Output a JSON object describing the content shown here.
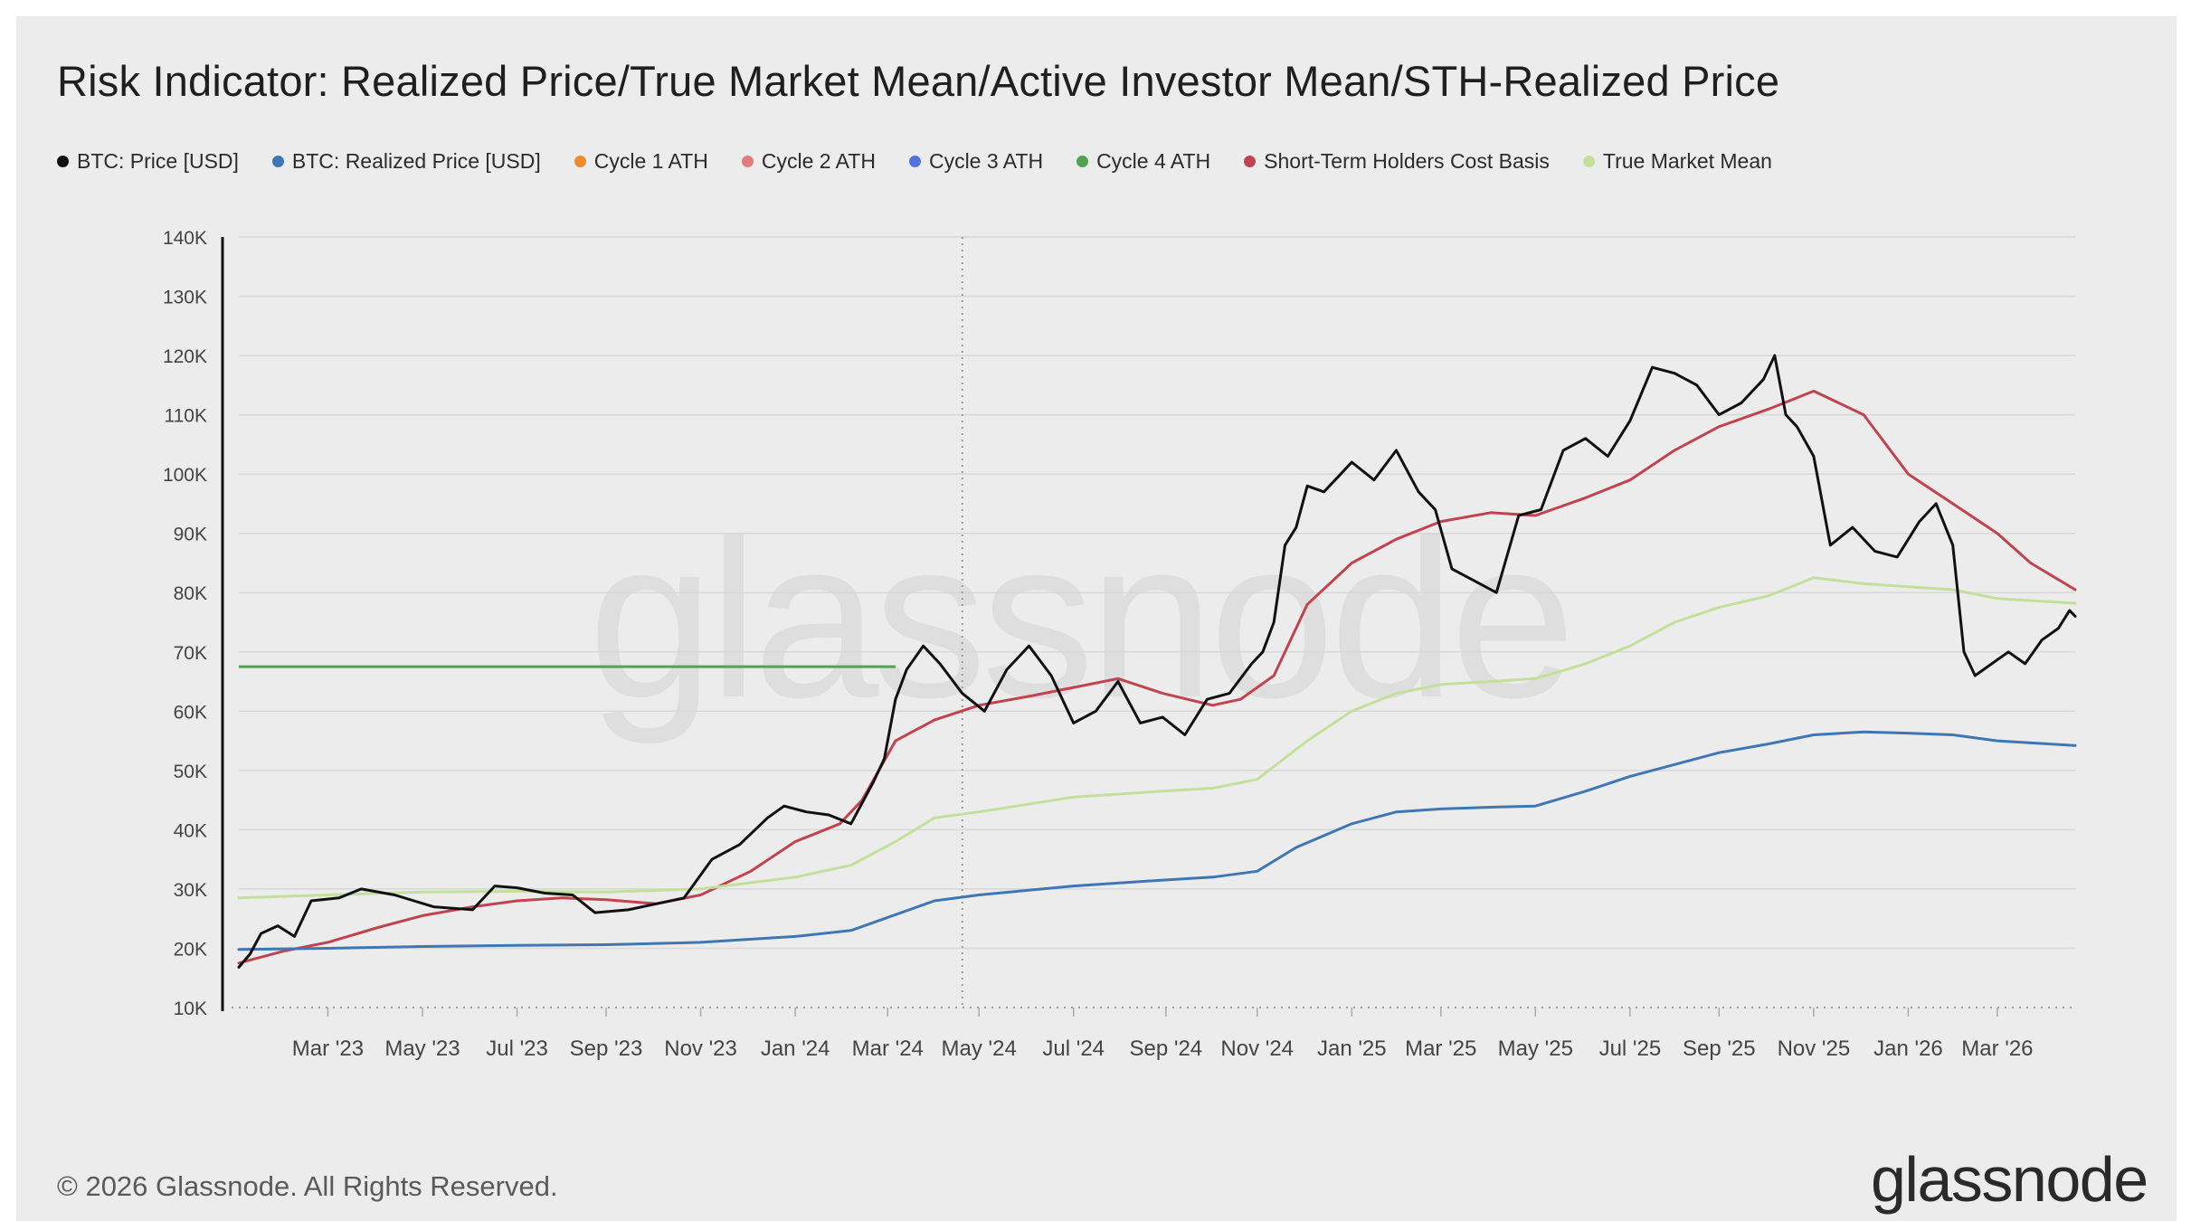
{
  "title": "Risk Indicator: Realized Price/True Market Mean/Active Investor Mean/STH-Realized Price",
  "legend": [
    {
      "label": "BTC: Price [USD]",
      "color": "#111111"
    },
    {
      "label": "BTC: Realized Price [USD]",
      "color": "#3f77b4"
    },
    {
      "label": "Cycle 1 ATH",
      "color": "#ef8b2c"
    },
    {
      "label": "Cycle 2 ATH",
      "color": "#e37d7d"
    },
    {
      "label": "Cycle 3 ATH",
      "color": "#4f74de"
    },
    {
      "label": "Cycle 4 ATH",
      "color": "#4fa352"
    },
    {
      "label": "Short-Term Holders Cost Basis",
      "color": "#c0434f"
    },
    {
      "label": "True Market Mean",
      "color": "#c3e09a"
    }
  ],
  "watermark": "glassnode",
  "footer": {
    "copyright": "© 2026 Glassnode. All Rights Reserved.",
    "logo": "glassnode"
  },
  "chart_data": {
    "type": "line",
    "title": "Risk Indicator: Realized Price/True Market Mean/Active Investor Mean/STH-Realized Price",
    "xlabel": "",
    "ylabel": "",
    "x_range": [
      2023.0,
      2026.3
    ],
    "ylim": [
      10000,
      140000
    ],
    "y_ticks": [
      10000,
      20000,
      30000,
      40000,
      50000,
      60000,
      70000,
      80000,
      90000,
      100000,
      110000,
      120000,
      130000,
      140000
    ],
    "y_tick_labels": [
      "10K",
      "20K",
      "30K",
      "40K",
      "50K",
      "60K",
      "70K",
      "80K",
      "90K",
      "100K",
      "110K",
      "120K",
      "130K",
      "140K"
    ],
    "x_ticks": [
      {
        "label": "Mar '23",
        "x": 2023.16
      },
      {
        "label": "May '23",
        "x": 2023.33
      },
      {
        "label": "Jul '23",
        "x": 2023.5
      },
      {
        "label": "Sep '23",
        "x": 2023.66
      },
      {
        "label": "Nov '23",
        "x": 2023.83
      },
      {
        "label": "Jan '24",
        "x": 2024.0
      },
      {
        "label": "Mar '24",
        "x": 2024.166
      },
      {
        "label": "May '24",
        "x": 2024.33
      },
      {
        "label": "Jul '24",
        "x": 2024.5
      },
      {
        "label": "Sep '24",
        "x": 2024.666
      },
      {
        "label": "Nov '24",
        "x": 2024.83
      },
      {
        "label": "Jan '25",
        "x": 2025.0
      },
      {
        "label": "Mar '25",
        "x": 2025.16
      },
      {
        "label": "May '25",
        "x": 2025.33
      },
      {
        "label": "Jul '25",
        "x": 2025.5
      },
      {
        "label": "Sep '25",
        "x": 2025.66
      },
      {
        "label": "Nov '25",
        "x": 2025.83
      },
      {
        "label": "Jan '26",
        "x": 2026.0
      },
      {
        "label": "Mar '26",
        "x": 2026.16
      }
    ],
    "grid": true,
    "annotations": [
      {
        "type": "vline",
        "x": 2024.3,
        "style": "dotted"
      },
      {
        "type": "hline",
        "name": "Cycle 4 ATH",
        "y": 67500,
        "x_start": 2023.0,
        "x_end": 2024.18
      }
    ],
    "series": [
      {
        "name": "Short-Term Holders Cost Basis",
        "color": "#c0434f",
        "width": 3,
        "points": [
          [
            2023.0,
            17500
          ],
          [
            2023.08,
            19500
          ],
          [
            2023.16,
            21000
          ],
          [
            2023.25,
            23500
          ],
          [
            2023.33,
            25500
          ],
          [
            2023.42,
            27000
          ],
          [
            2023.5,
            28000
          ],
          [
            2023.58,
            28500
          ],
          [
            2023.66,
            28200
          ],
          [
            2023.75,
            27500
          ],
          [
            2023.83,
            29000
          ],
          [
            2023.92,
            33000
          ],
          [
            2024.0,
            38000
          ],
          [
            2024.08,
            41000
          ],
          [
            2024.12,
            45000
          ],
          [
            2024.18,
            55000
          ],
          [
            2024.25,
            58500
          ],
          [
            2024.33,
            61000
          ],
          [
            2024.42,
            62500
          ],
          [
            2024.5,
            64000
          ],
          [
            2024.58,
            65500
          ],
          [
            2024.66,
            63000
          ],
          [
            2024.75,
            61000
          ],
          [
            2024.8,
            62000
          ],
          [
            2024.86,
            66000
          ],
          [
            2024.92,
            78000
          ],
          [
            2025.0,
            85000
          ],
          [
            2025.08,
            89000
          ],
          [
            2025.16,
            92000
          ],
          [
            2025.25,
            93500
          ],
          [
            2025.33,
            93000
          ],
          [
            2025.42,
            96000
          ],
          [
            2025.5,
            99000
          ],
          [
            2025.58,
            104000
          ],
          [
            2025.66,
            108000
          ],
          [
            2025.75,
            111000
          ],
          [
            2025.83,
            114000
          ],
          [
            2025.92,
            110000
          ],
          [
            2026.0,
            100000
          ],
          [
            2026.08,
            95000
          ],
          [
            2026.16,
            90000
          ],
          [
            2026.22,
            85000
          ],
          [
            2026.3,
            80500
          ]
        ]
      },
      {
        "name": "True Market Mean",
        "color": "#c3e09a",
        "width": 3,
        "points": [
          [
            2023.0,
            28500
          ],
          [
            2023.16,
            29000
          ],
          [
            2023.33,
            29500
          ],
          [
            2023.5,
            29600
          ],
          [
            2023.66,
            29500
          ],
          [
            2023.83,
            30000
          ],
          [
            2024.0,
            32000
          ],
          [
            2024.1,
            34000
          ],
          [
            2024.18,
            38000
          ],
          [
            2024.25,
            42000
          ],
          [
            2024.33,
            43000
          ],
          [
            2024.5,
            45500
          ],
          [
            2024.66,
            46500
          ],
          [
            2024.75,
            47000
          ],
          [
            2024.83,
            48500
          ],
          [
            2024.92,
            55000
          ],
          [
            2025.0,
            60000
          ],
          [
            2025.08,
            63000
          ],
          [
            2025.16,
            64500
          ],
          [
            2025.25,
            65000
          ],
          [
            2025.33,
            65500
          ],
          [
            2025.42,
            68000
          ],
          [
            2025.5,
            71000
          ],
          [
            2025.58,
            75000
          ],
          [
            2025.66,
            77500
          ],
          [
            2025.75,
            79500
          ],
          [
            2025.83,
            82500
          ],
          [
            2025.92,
            81500
          ],
          [
            2026.0,
            81000
          ],
          [
            2026.08,
            80500
          ],
          [
            2026.16,
            79000
          ],
          [
            2026.3,
            78200
          ]
        ]
      },
      {
        "name": "BTC: Realized Price [USD]",
        "color": "#3f77b4",
        "width": 3,
        "points": [
          [
            2023.0,
            19800
          ],
          [
            2023.16,
            20000
          ],
          [
            2023.33,
            20300
          ],
          [
            2023.5,
            20500
          ],
          [
            2023.66,
            20600
          ],
          [
            2023.83,
            21000
          ],
          [
            2024.0,
            22000
          ],
          [
            2024.1,
            23000
          ],
          [
            2024.16,
            25000
          ],
          [
            2024.25,
            28000
          ],
          [
            2024.33,
            29000
          ],
          [
            2024.5,
            30500
          ],
          [
            2024.66,
            31500
          ],
          [
            2024.75,
            32000
          ],
          [
            2024.83,
            33000
          ],
          [
            2024.9,
            37000
          ],
          [
            2025.0,
            41000
          ],
          [
            2025.08,
            43000
          ],
          [
            2025.16,
            43500
          ],
          [
            2025.25,
            43800
          ],
          [
            2025.33,
            44000
          ],
          [
            2025.42,
            46500
          ],
          [
            2025.5,
            49000
          ],
          [
            2025.58,
            51000
          ],
          [
            2025.66,
            53000
          ],
          [
            2025.75,
            54500
          ],
          [
            2025.83,
            56000
          ],
          [
            2025.92,
            56500
          ],
          [
            2026.0,
            56300
          ],
          [
            2026.08,
            56000
          ],
          [
            2026.16,
            55000
          ],
          [
            2026.3,
            54200
          ]
        ]
      },
      {
        "name": "BTC: Price [USD]",
        "color": "#111111",
        "width": 3,
        "points": [
          [
            2023.0,
            16800
          ],
          [
            2023.02,
            19000
          ],
          [
            2023.04,
            22500
          ],
          [
            2023.07,
            23800
          ],
          [
            2023.1,
            22000
          ],
          [
            2023.13,
            28000
          ],
          [
            2023.18,
            28500
          ],
          [
            2023.22,
            30000
          ],
          [
            2023.28,
            29000
          ],
          [
            2023.35,
            27000
          ],
          [
            2023.42,
            26500
          ],
          [
            2023.46,
            30500
          ],
          [
            2023.5,
            30200
          ],
          [
            2023.55,
            29300
          ],
          [
            2023.6,
            29000
          ],
          [
            2023.64,
            26000
          ],
          [
            2023.7,
            26500
          ],
          [
            2023.75,
            27500
          ],
          [
            2023.8,
            28500
          ],
          [
            2023.85,
            35000
          ],
          [
            2023.9,
            37500
          ],
          [
            2023.95,
            42000
          ],
          [
            2023.98,
            44000
          ],
          [
            2024.02,
            43000
          ],
          [
            2024.06,
            42500
          ],
          [
            2024.1,
            41000
          ],
          [
            2024.14,
            48000
          ],
          [
            2024.16,
            52000
          ],
          [
            2024.18,
            62000
          ],
          [
            2024.2,
            67000
          ],
          [
            2024.23,
            71000
          ],
          [
            2024.26,
            68000
          ],
          [
            2024.3,
            63000
          ],
          [
            2024.34,
            60000
          ],
          [
            2024.38,
            67000
          ],
          [
            2024.42,
            71000
          ],
          [
            2024.46,
            66000
          ],
          [
            2024.5,
            58000
          ],
          [
            2024.54,
            60000
          ],
          [
            2024.58,
            65000
          ],
          [
            2024.62,
            58000
          ],
          [
            2024.66,
            59000
          ],
          [
            2024.7,
            56000
          ],
          [
            2024.74,
            62000
          ],
          [
            2024.78,
            63000
          ],
          [
            2024.82,
            68000
          ],
          [
            2024.84,
            70000
          ],
          [
            2024.86,
            75000
          ],
          [
            2024.88,
            88000
          ],
          [
            2024.9,
            91000
          ],
          [
            2024.92,
            98000
          ],
          [
            2024.95,
            97000
          ],
          [
            2024.98,
            100000
          ],
          [
            2025.0,
            102000
          ],
          [
            2025.04,
            99000
          ],
          [
            2025.08,
            104000
          ],
          [
            2025.12,
            97000
          ],
          [
            2025.15,
            94000
          ],
          [
            2025.18,
            84000
          ],
          [
            2025.22,
            82000
          ],
          [
            2025.26,
            80000
          ],
          [
            2025.3,
            93000
          ],
          [
            2025.34,
            94000
          ],
          [
            2025.38,
            104000
          ],
          [
            2025.42,
            106000
          ],
          [
            2025.46,
            103000
          ],
          [
            2025.5,
            109000
          ],
          [
            2025.54,
            118000
          ],
          [
            2025.58,
            117000
          ],
          [
            2025.62,
            115000
          ],
          [
            2025.66,
            110000
          ],
          [
            2025.7,
            112000
          ],
          [
            2025.74,
            116000
          ],
          [
            2025.76,
            120000
          ],
          [
            2025.78,
            110000
          ],
          [
            2025.8,
            108000
          ],
          [
            2025.83,
            103000
          ],
          [
            2025.86,
            88000
          ],
          [
            2025.9,
            91000
          ],
          [
            2025.94,
            87000
          ],
          [
            2025.98,
            86000
          ],
          [
            2026.02,
            92000
          ],
          [
            2026.05,
            95000
          ],
          [
            2026.08,
            88000
          ],
          [
            2026.1,
            70000
          ],
          [
            2026.12,
            66000
          ],
          [
            2026.15,
            68000
          ],
          [
            2026.18,
            70000
          ],
          [
            2026.21,
            68000
          ],
          [
            2026.24,
            72000
          ],
          [
            2026.27,
            74000
          ],
          [
            2026.29,
            77000
          ],
          [
            2026.3,
            76000
          ]
        ]
      }
    ]
  }
}
